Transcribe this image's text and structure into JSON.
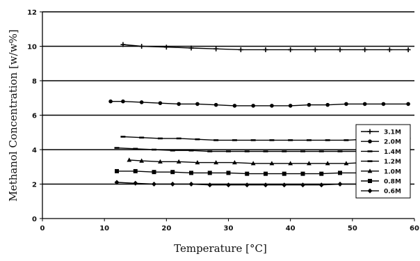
{
  "chart_data": {
    "type": "line",
    "title": "",
    "xlabel": "Temperature [°C]",
    "ylabel": "Methanol Concentration [w/w%]",
    "xlim": [
      0,
      60
    ],
    "ylim": [
      0,
      12
    ],
    "x_ticks": [
      "0",
      "10",
      "20",
      "30",
      "40",
      "50",
      "60"
    ],
    "y_ticks": [
      "0",
      "2",
      "4",
      "6",
      "8",
      "10",
      "12"
    ],
    "grid": "horizontal",
    "legend_position": "right",
    "series": [
      {
        "name": "3.1M",
        "marker": "plus",
        "x": [
          13,
          16,
          20,
          24,
          28,
          32,
          36,
          40,
          44,
          48,
          52,
          56,
          59
        ],
        "y": [
          10.1,
          10.0,
          9.95,
          9.9,
          9.85,
          9.8,
          9.8,
          9.8,
          9.8,
          9.8,
          9.8,
          9.8,
          9.8
        ]
      },
      {
        "name": "2.0M",
        "marker": "circle",
        "x": [
          11,
          13,
          16,
          19,
          22,
          25,
          28,
          31,
          34,
          37,
          40,
          43,
          46,
          49,
          52,
          55,
          59
        ],
        "y": [
          6.8,
          6.8,
          6.75,
          6.7,
          6.65,
          6.65,
          6.6,
          6.55,
          6.55,
          6.55,
          6.55,
          6.6,
          6.6,
          6.65,
          6.65,
          6.65,
          6.65
        ]
      },
      {
        "name": "1.4M",
        "marker": "dash",
        "x": [
          13,
          16,
          19,
          22,
          25,
          28,
          31,
          34,
          37,
          40,
          43,
          46,
          49,
          52,
          55,
          59
        ],
        "y": [
          4.75,
          4.7,
          4.65,
          4.65,
          4.6,
          4.55,
          4.55,
          4.55,
          4.55,
          4.55,
          4.55,
          4.55,
          4.55,
          4.6,
          4.6,
          4.65
        ]
      },
      {
        "name": "1.2M",
        "marker": "dash",
        "x": [
          12,
          15,
          18,
          21,
          24,
          27,
          30,
          33,
          36,
          39,
          42,
          45,
          48,
          51,
          54,
          59
        ],
        "y": [
          4.1,
          4.05,
          4.0,
          3.95,
          3.95,
          3.9,
          3.9,
          3.9,
          3.9,
          3.9,
          3.9,
          3.9,
          3.9,
          3.9,
          3.95,
          4.0
        ]
      },
      {
        "name": "1.0M",
        "marker": "triangle",
        "x": [
          14,
          16,
          19,
          22,
          25,
          28,
          31,
          34,
          37,
          40,
          43,
          46,
          49,
          52,
          55,
          58
        ],
        "y": [
          3.4,
          3.35,
          3.3,
          3.3,
          3.25,
          3.25,
          3.25,
          3.2,
          3.2,
          3.2,
          3.2,
          3.2,
          3.2,
          3.25,
          3.3,
          3.35
        ]
      },
      {
        "name": "0.8M",
        "marker": "square",
        "x": [
          12,
          15,
          18,
          21,
          24,
          27,
          30,
          33,
          36,
          39,
          42,
          45,
          48,
          51,
          54,
          57
        ],
        "y": [
          2.75,
          2.75,
          2.7,
          2.7,
          2.65,
          2.65,
          2.65,
          2.6,
          2.6,
          2.6,
          2.6,
          2.6,
          2.65,
          2.65,
          2.65,
          2.65
        ]
      },
      {
        "name": "0.6M",
        "marker": "diamond",
        "x": [
          12,
          15,
          18,
          21,
          24,
          27,
          30,
          33,
          36,
          39,
          42,
          45,
          48,
          51,
          54,
          57
        ],
        "y": [
          2.1,
          2.05,
          2.0,
          2.0,
          2.0,
          1.95,
          1.95,
          1.95,
          1.95,
          1.95,
          1.95,
          1.95,
          2.0,
          2.0,
          2.0,
          2.0
        ]
      }
    ]
  }
}
